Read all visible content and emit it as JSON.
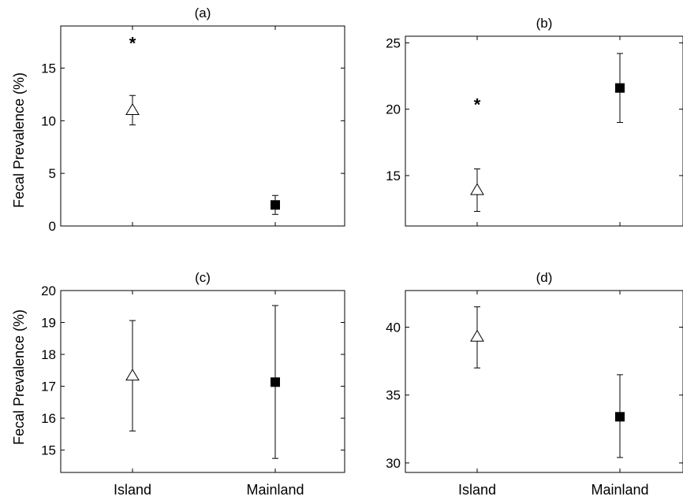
{
  "ylabel": "Fecal Prevalence (%)",
  "categories": [
    "Island",
    "Mainland"
  ],
  "colors": {
    "island_marker": "#ffffff",
    "mainland_marker": "#000000",
    "axis": "#000000"
  },
  "chart_data": [
    {
      "type": "scatter",
      "title": "(a)",
      "ylabel": "Fecal Prevalence (%)",
      "ylim": [
        0,
        19
      ],
      "yticks": [
        0,
        5,
        10,
        15
      ],
      "categories": [
        "Island",
        "Mainland"
      ],
      "points": [
        {
          "category": "Island",
          "marker": "open-triangle",
          "value": 11.0,
          "lower": 9.6,
          "upper": 12.4
        },
        {
          "category": "Mainland",
          "marker": "filled-square",
          "value": 2.0,
          "lower": 1.1,
          "upper": 2.9
        }
      ],
      "annotations": [
        {
          "text": "*",
          "category": "Island",
          "value": 17.7
        }
      ]
    },
    {
      "type": "scatter",
      "title": "(b)",
      "ylabel": "",
      "ylim": [
        11.2,
        25.5
      ],
      "yticks": [
        15,
        20,
        25
      ],
      "categories": [
        "Island",
        "Mainland"
      ],
      "points": [
        {
          "category": "Island",
          "marker": "open-triangle",
          "value": 13.9,
          "lower": 12.3,
          "upper": 15.5
        },
        {
          "category": "Mainland",
          "marker": "filled-square",
          "value": 21.6,
          "lower": 19.0,
          "upper": 24.2
        }
      ],
      "annotations": [
        {
          "text": "*",
          "category": "Island",
          "value": 20.6
        }
      ]
    },
    {
      "type": "scatter",
      "title": "(c)",
      "ylabel": "Fecal Prevalence (%)",
      "ylim": [
        14.3,
        20.0
      ],
      "yticks": [
        15,
        16,
        17,
        18,
        19,
        20
      ],
      "categories": [
        "Island",
        "Mainland"
      ],
      "points": [
        {
          "category": "Island",
          "marker": "open-triangle",
          "value": 17.33,
          "lower": 15.6,
          "upper": 19.06
        },
        {
          "category": "Mainland",
          "marker": "filled-square",
          "value": 17.13,
          "lower": 14.74,
          "upper": 19.53
        }
      ],
      "annotations": []
    },
    {
      "type": "scatter",
      "title": "(d)",
      "ylabel": "",
      "ylim": [
        29.3,
        42.7
      ],
      "yticks": [
        30,
        35,
        40
      ],
      "categories": [
        "Island",
        "Mainland"
      ],
      "points": [
        {
          "category": "Island",
          "marker": "open-triangle",
          "value": 39.3,
          "lower": 37.0,
          "upper": 41.5
        },
        {
          "category": "Mainland",
          "marker": "filled-square",
          "value": 33.4,
          "lower": 30.4,
          "upper": 36.5
        }
      ],
      "annotations": []
    }
  ]
}
